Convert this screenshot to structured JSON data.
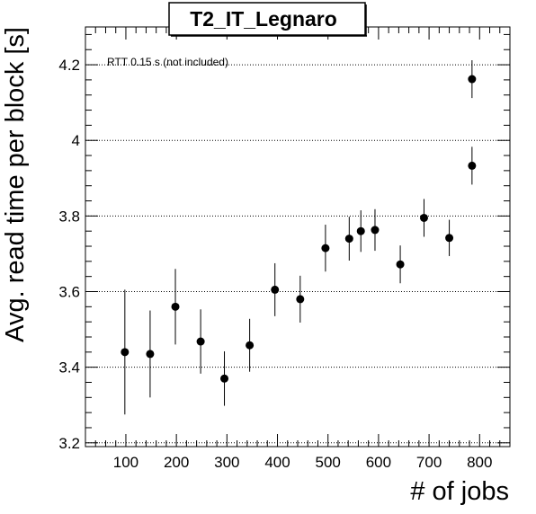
{
  "chart_data": {
    "type": "scatter",
    "title": "T2_IT_Legnaro",
    "xlabel": "# of jobs",
    "ylabel": "Avg. read time per block [s]",
    "annotation": "RTT 0.15 s (not included)",
    "xlim": [
      20,
      860
    ],
    "ylim": [
      3.19,
      4.3
    ],
    "xticks": [
      100,
      200,
      300,
      400,
      500,
      600,
      700,
      800
    ],
    "yticks": [
      3.2,
      3.4,
      3.6,
      3.8,
      4,
      4.2
    ],
    "ytick_labels": [
      "3.2",
      "3.4",
      "3.6",
      "3.8",
      "4",
      "4.2"
    ],
    "xtick_labels": [
      "100",
      "200",
      "300",
      "400",
      "500",
      "600",
      "700",
      "800"
    ],
    "grid": "horizontal dotted",
    "marker_color": "#000000",
    "points": [
      {
        "x": 98,
        "y": 3.44,
        "err": 0.165
      },
      {
        "x": 148,
        "y": 3.435,
        "err": 0.115
      },
      {
        "x": 198,
        "y": 3.56,
        "err": 0.1
      },
      {
        "x": 248,
        "y": 3.468,
        "err": 0.085
      },
      {
        "x": 295,
        "y": 3.37,
        "err": 0.072
      },
      {
        "x": 345,
        "y": 3.458,
        "err": 0.07
      },
      {
        "x": 395,
        "y": 3.605,
        "err": 0.07
      },
      {
        "x": 445,
        "y": 3.58,
        "err": 0.062
      },
      {
        "x": 495,
        "y": 3.715,
        "err": 0.062
      },
      {
        "x": 542,
        "y": 3.74,
        "err": 0.058
      },
      {
        "x": 565,
        "y": 3.76,
        "err": 0.055
      },
      {
        "x": 593,
        "y": 3.763,
        "err": 0.055
      },
      {
        "x": 643,
        "y": 3.672,
        "err": 0.05
      },
      {
        "x": 690,
        "y": 3.795,
        "err": 0.05
      },
      {
        "x": 740,
        "y": 3.742,
        "err": 0.048
      },
      {
        "x": 785,
        "y": 4.162,
        "err": 0.05
      },
      {
        "x": 785,
        "y": 3.933,
        "err": 0.05
      }
    ]
  }
}
